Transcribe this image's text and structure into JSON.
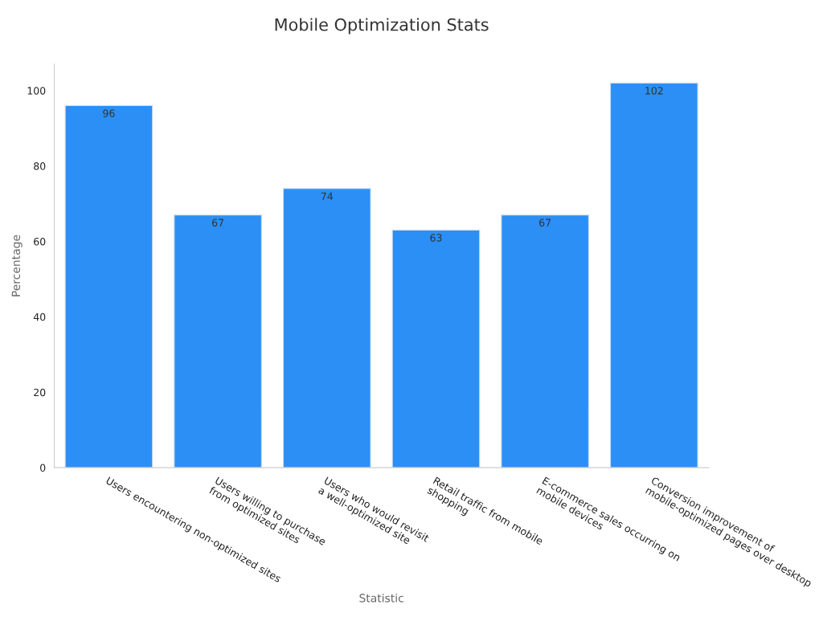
{
  "chart_data": {
    "type": "bar",
    "title": "Mobile Optimization Stats",
    "xlabel": "Statistic",
    "ylabel": "Percentage",
    "categories": [
      "Users encountering non-optimized sites",
      "Users willing to purchase\nfrom optimized sites",
      "Users who would revisit\na well-optimized site",
      "Retail traffic from mobile\nshopping",
      "E-commerce sales occurring on\nmobile devices",
      "Conversion improvement of\nmobile-optimized pages over desktop"
    ],
    "values": [
      96,
      67,
      74,
      63,
      67,
      102
    ],
    "color": "#2b8ff5",
    "ylim": [
      0,
      107
    ],
    "yticks": [
      0,
      20,
      40,
      60,
      80,
      100
    ],
    "grid": false,
    "data_labels": true
  }
}
